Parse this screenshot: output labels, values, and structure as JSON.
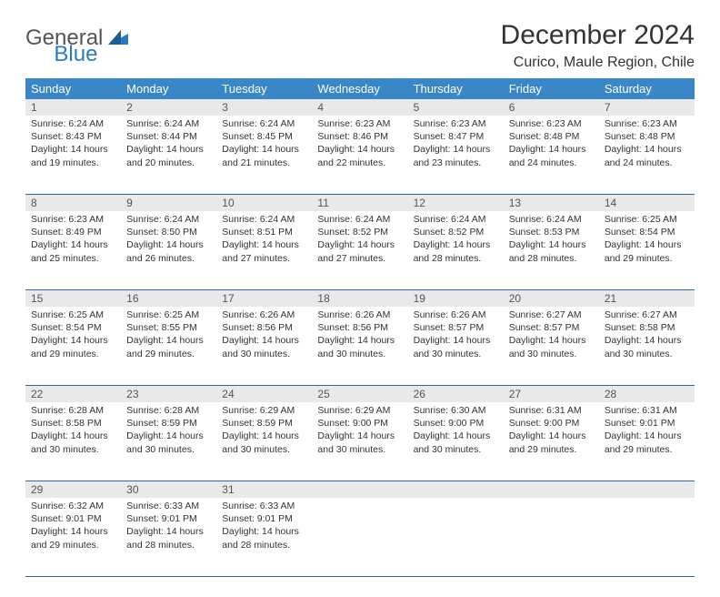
{
  "logo": {
    "part1": "General",
    "part2": "Blue"
  },
  "title": "December 2024",
  "location": "Curico, Maule Region, Chile",
  "colors": {
    "header_bg": "#3a87c8",
    "header_text": "#ffffff",
    "daynum_bg": "#e9e9e9",
    "rule": "#2a6aa0",
    "logo_gray": "#555555",
    "logo_blue": "#2a7cc2",
    "text": "#333333",
    "page_bg": "#ffffff"
  },
  "typography": {
    "title_fontsize": 30,
    "location_fontsize": 16,
    "day_header_fontsize": 13,
    "cell_fontsize": 10.5
  },
  "day_headers": [
    "Sunday",
    "Monday",
    "Tuesday",
    "Wednesday",
    "Thursday",
    "Friday",
    "Saturday"
  ],
  "weeks": [
    [
      {
        "n": "1",
        "sunrise": "6:24 AM",
        "sunset": "8:43 PM",
        "dl1": "Daylight: 14 hours",
        "dl2": "and 19 minutes."
      },
      {
        "n": "2",
        "sunrise": "6:24 AM",
        "sunset": "8:44 PM",
        "dl1": "Daylight: 14 hours",
        "dl2": "and 20 minutes."
      },
      {
        "n": "3",
        "sunrise": "6:24 AM",
        "sunset": "8:45 PM",
        "dl1": "Daylight: 14 hours",
        "dl2": "and 21 minutes."
      },
      {
        "n": "4",
        "sunrise": "6:23 AM",
        "sunset": "8:46 PM",
        "dl1": "Daylight: 14 hours",
        "dl2": "and 22 minutes."
      },
      {
        "n": "5",
        "sunrise": "6:23 AM",
        "sunset": "8:47 PM",
        "dl1": "Daylight: 14 hours",
        "dl2": "and 23 minutes."
      },
      {
        "n": "6",
        "sunrise": "6:23 AM",
        "sunset": "8:48 PM",
        "dl1": "Daylight: 14 hours",
        "dl2": "and 24 minutes."
      },
      {
        "n": "7",
        "sunrise": "6:23 AM",
        "sunset": "8:48 PM",
        "dl1": "Daylight: 14 hours",
        "dl2": "and 24 minutes."
      }
    ],
    [
      {
        "n": "8",
        "sunrise": "6:23 AM",
        "sunset": "8:49 PM",
        "dl1": "Daylight: 14 hours",
        "dl2": "and 25 minutes."
      },
      {
        "n": "9",
        "sunrise": "6:24 AM",
        "sunset": "8:50 PM",
        "dl1": "Daylight: 14 hours",
        "dl2": "and 26 minutes."
      },
      {
        "n": "10",
        "sunrise": "6:24 AM",
        "sunset": "8:51 PM",
        "dl1": "Daylight: 14 hours",
        "dl2": "and 27 minutes."
      },
      {
        "n": "11",
        "sunrise": "6:24 AM",
        "sunset": "8:52 PM",
        "dl1": "Daylight: 14 hours",
        "dl2": "and 27 minutes."
      },
      {
        "n": "12",
        "sunrise": "6:24 AM",
        "sunset": "8:52 PM",
        "dl1": "Daylight: 14 hours",
        "dl2": "and 28 minutes."
      },
      {
        "n": "13",
        "sunrise": "6:24 AM",
        "sunset": "8:53 PM",
        "dl1": "Daylight: 14 hours",
        "dl2": "and 28 minutes."
      },
      {
        "n": "14",
        "sunrise": "6:25 AM",
        "sunset": "8:54 PM",
        "dl1": "Daylight: 14 hours",
        "dl2": "and 29 minutes."
      }
    ],
    [
      {
        "n": "15",
        "sunrise": "6:25 AM",
        "sunset": "8:54 PM",
        "dl1": "Daylight: 14 hours",
        "dl2": "and 29 minutes."
      },
      {
        "n": "16",
        "sunrise": "6:25 AM",
        "sunset": "8:55 PM",
        "dl1": "Daylight: 14 hours",
        "dl2": "and 29 minutes."
      },
      {
        "n": "17",
        "sunrise": "6:26 AM",
        "sunset": "8:56 PM",
        "dl1": "Daylight: 14 hours",
        "dl2": "and 30 minutes."
      },
      {
        "n": "18",
        "sunrise": "6:26 AM",
        "sunset": "8:56 PM",
        "dl1": "Daylight: 14 hours",
        "dl2": "and 30 minutes."
      },
      {
        "n": "19",
        "sunrise": "6:26 AM",
        "sunset": "8:57 PM",
        "dl1": "Daylight: 14 hours",
        "dl2": "and 30 minutes."
      },
      {
        "n": "20",
        "sunrise": "6:27 AM",
        "sunset": "8:57 PM",
        "dl1": "Daylight: 14 hours",
        "dl2": "and 30 minutes."
      },
      {
        "n": "21",
        "sunrise": "6:27 AM",
        "sunset": "8:58 PM",
        "dl1": "Daylight: 14 hours",
        "dl2": "and 30 minutes."
      }
    ],
    [
      {
        "n": "22",
        "sunrise": "6:28 AM",
        "sunset": "8:58 PM",
        "dl1": "Daylight: 14 hours",
        "dl2": "and 30 minutes."
      },
      {
        "n": "23",
        "sunrise": "6:28 AM",
        "sunset": "8:59 PM",
        "dl1": "Daylight: 14 hours",
        "dl2": "and 30 minutes."
      },
      {
        "n": "24",
        "sunrise": "6:29 AM",
        "sunset": "8:59 PM",
        "dl1": "Daylight: 14 hours",
        "dl2": "and 30 minutes."
      },
      {
        "n": "25",
        "sunrise": "6:29 AM",
        "sunset": "9:00 PM",
        "dl1": "Daylight: 14 hours",
        "dl2": "and 30 minutes."
      },
      {
        "n": "26",
        "sunrise": "6:30 AM",
        "sunset": "9:00 PM",
        "dl1": "Daylight: 14 hours",
        "dl2": "and 30 minutes."
      },
      {
        "n": "27",
        "sunrise": "6:31 AM",
        "sunset": "9:00 PM",
        "dl1": "Daylight: 14 hours",
        "dl2": "and 29 minutes."
      },
      {
        "n": "28",
        "sunrise": "6:31 AM",
        "sunset": "9:01 PM",
        "dl1": "Daylight: 14 hours",
        "dl2": "and 29 minutes."
      }
    ],
    [
      {
        "n": "29",
        "sunrise": "6:32 AM",
        "sunset": "9:01 PM",
        "dl1": "Daylight: 14 hours",
        "dl2": "and 29 minutes."
      },
      {
        "n": "30",
        "sunrise": "6:33 AM",
        "sunset": "9:01 PM",
        "dl1": "Daylight: 14 hours",
        "dl2": "and 28 minutes."
      },
      {
        "n": "31",
        "sunrise": "6:33 AM",
        "sunset": "9:01 PM",
        "dl1": "Daylight: 14 hours",
        "dl2": "and 28 minutes."
      },
      {
        "empty": true
      },
      {
        "empty": true
      },
      {
        "empty": true
      },
      {
        "empty": true
      }
    ]
  ],
  "labels": {
    "sunrise_prefix": "Sunrise: ",
    "sunset_prefix": "Sunset: "
  }
}
